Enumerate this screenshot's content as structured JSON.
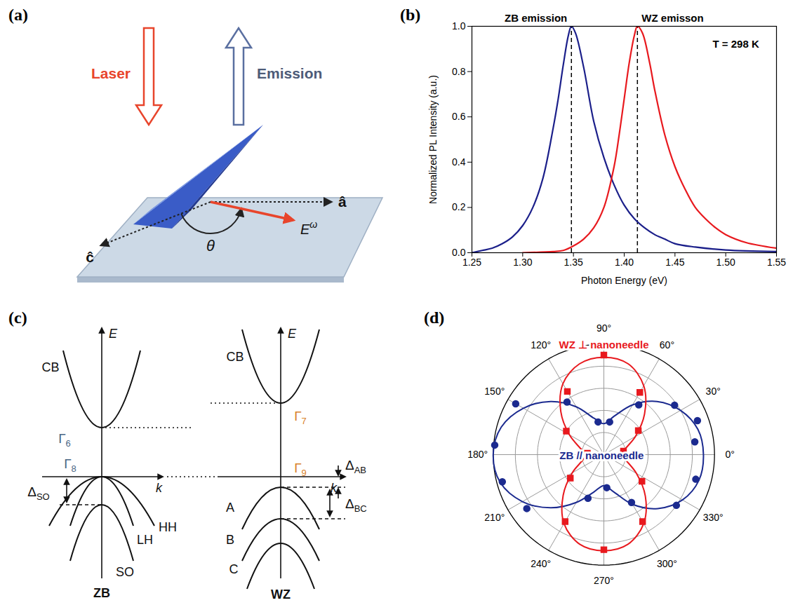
{
  "chart_data": [
    {
      "type": "line",
      "title": "(b)",
      "xlabel": "Photon Energy (eV)",
      "ylabel": "Normalized PL Intensity (a.u.)",
      "xlim": [
        1.25,
        1.55
      ],
      "xticks": [
        1.25,
        {
          "value": 1.3,
          "label": "1.30"
        },
        1.35,
        {
          "value": 1.4,
          "label": "1.40"
        },
        1.45,
        {
          "value": 1.5,
          "label": "1.50"
        },
        1.55
      ],
      "ylim": [
        0,
        1
      ],
      "yticks": [
        {
          "value": 0,
          "label": "0.0"
        },
        0.2,
        0.4,
        0.6,
        0.8,
        {
          "value": 1,
          "label": "1.0"
        }
      ],
      "grid": false,
      "peak_lines": [
        1.348,
        1.413
      ],
      "annotations": [
        {
          "text": "T = 298 K",
          "x": 1.51,
          "y": 0.92
        }
      ],
      "series": [
        {
          "name": "ZB emission",
          "color": "#1b1f8a",
          "x": [
            1.25,
            1.26,
            1.27,
            1.28,
            1.29,
            1.3,
            1.31,
            1.32,
            1.33,
            1.335,
            1.34,
            1.345,
            1.348,
            1.352,
            1.36,
            1.37,
            1.38,
            1.39,
            1.4,
            1.41,
            1.42,
            1.43,
            1.44,
            1.45,
            1.47,
            1.5,
            1.55
          ],
          "values": [
            0.0,
            0.01,
            0.02,
            0.04,
            0.07,
            0.12,
            0.2,
            0.33,
            0.55,
            0.68,
            0.83,
            0.96,
            1.0,
            0.97,
            0.82,
            0.58,
            0.42,
            0.3,
            0.21,
            0.15,
            0.11,
            0.08,
            0.06,
            0.04,
            0.025,
            0.012,
            0.005
          ]
        },
        {
          "name": "WZ emisson",
          "color": "#e8191e",
          "x": [
            1.3,
            1.33,
            1.34,
            1.35,
            1.36,
            1.37,
            1.38,
            1.39,
            1.395,
            1.4,
            1.405,
            1.41,
            1.413,
            1.418,
            1.425,
            1.43,
            1.44,
            1.45,
            1.46,
            1.47,
            1.48,
            1.49,
            1.5,
            1.52,
            1.55
          ],
          "values": [
            0.0,
            0.005,
            0.01,
            0.03,
            0.06,
            0.11,
            0.2,
            0.38,
            0.52,
            0.68,
            0.84,
            0.96,
            1.0,
            0.97,
            0.84,
            0.72,
            0.52,
            0.38,
            0.28,
            0.2,
            0.15,
            0.11,
            0.08,
            0.045,
            0.02
          ]
        }
      ]
    },
    {
      "type": "polar",
      "title": "(d)",
      "xlim": [
        0,
        360
      ],
      "xticks": [
        {
          "value": 0,
          "label": "0°"
        },
        {
          "value": 30,
          "label": "30°"
        },
        {
          "value": 60,
          "label": "60°"
        },
        {
          "value": 90,
          "label": "90°"
        },
        {
          "value": 120,
          "label": "120°"
        },
        {
          "value": 150,
          "label": "150°"
        },
        {
          "value": 180,
          "label": "180°"
        },
        {
          "value": 210,
          "label": "210°"
        },
        {
          "value": 240,
          "label": "240°"
        },
        {
          "value": 270,
          "label": "270°"
        },
        {
          "value": 300,
          "label": "300°"
        },
        {
          "value": 330,
          "label": "330°"
        }
      ],
      "ylim": [
        0,
        1
      ],
      "yticks": [
        0.2,
        0.4,
        0.6,
        0.8,
        1
      ],
      "tick_labels": "x",
      "grid": true,
      "series": [
        {
          "name": "ZB // nanoneedle",
          "color": "#1b2a8f",
          "marker": "circle",
          "theta": [
            8,
            20,
            35,
            55,
            80,
            100,
            125,
            150,
            175,
            195,
            215,
            250,
            275,
            300,
            325,
            345
          ],
          "values": [
            0.83,
            0.9,
            0.78,
            0.55,
            0.3,
            0.3,
            0.58,
            0.92,
            0.99,
            0.95,
            0.85,
            0.42,
            0.3,
            0.5,
            0.8,
            0.86
          ],
          "fit_theta": [
            0,
            15,
            30,
            45,
            60,
            75,
            90,
            105,
            120,
            135,
            150,
            165,
            180,
            195,
            210,
            225,
            240,
            255,
            270,
            285,
            300,
            315,
            330,
            345
          ],
          "fit_values": [
            0.9,
            0.88,
            0.8,
            0.68,
            0.52,
            0.36,
            0.28,
            0.34,
            0.5,
            0.68,
            0.84,
            0.96,
            1.0,
            0.97,
            0.85,
            0.68,
            0.5,
            0.35,
            0.28,
            0.35,
            0.52,
            0.69,
            0.82,
            0.89
          ]
        },
        {
          "name": "WZ ⊥ nanoneedle",
          "color": "#e8191e",
          "marker": "square",
          "theta": [
            10,
            35,
            60,
            90,
            120,
            148,
            175,
            215,
            240,
            270,
            300,
            325
          ],
          "values": [
            0.18,
            0.38,
            0.65,
            0.9,
            0.66,
            0.4,
            0.15,
            0.37,
            0.7,
            0.86,
            0.7,
            0.42
          ],
          "fit_theta": [
            0,
            15,
            30,
            45,
            60,
            75,
            90,
            105,
            120,
            135,
            150,
            165,
            180,
            195,
            210,
            225,
            240,
            255,
            270,
            285,
            300,
            315,
            330,
            345
          ],
          "fit_values": [
            0.16,
            0.2,
            0.33,
            0.52,
            0.72,
            0.85,
            0.88,
            0.85,
            0.74,
            0.55,
            0.36,
            0.22,
            0.16,
            0.2,
            0.33,
            0.52,
            0.72,
            0.84,
            0.87,
            0.84,
            0.72,
            0.53,
            0.34,
            0.21
          ]
        }
      ]
    }
  ],
  "diagrams": {
    "a": {
      "letter": "(a)",
      "laser": "Laser",
      "emission": "Emission",
      "a_axis": "â",
      "c_axis": "ĉ",
      "angle": "θ",
      "field": {
        "text": "E",
        "sup": "ω"
      }
    },
    "c": {
      "letter": "(c)",
      "zb": {
        "name": "ZB",
        "cb": "CB",
        "cb_point": {
          "text": "Γ",
          "sub": "6"
        },
        "vb_point": {
          "text": "Γ",
          "sub": "8"
        },
        "energy": "E",
        "momentum": "k",
        "split": {
          "text": "Δ",
          "sub": "SO"
        },
        "bands": [
          "HH",
          "LH",
          "SO"
        ]
      },
      "wz": {
        "name": "WZ",
        "cb": "CB",
        "cb_point": {
          "text": "Γ",
          "sub": "7"
        },
        "vb_point": {
          "text": "Γ",
          "sub": "9"
        },
        "energy": "E",
        "momentum": "k",
        "splits": [
          {
            "text": "Δ",
            "sub": "AB"
          },
          {
            "text": "Δ",
            "sub": "BC"
          }
        ],
        "bands": [
          "A",
          "B",
          "C"
        ]
      }
    }
  }
}
